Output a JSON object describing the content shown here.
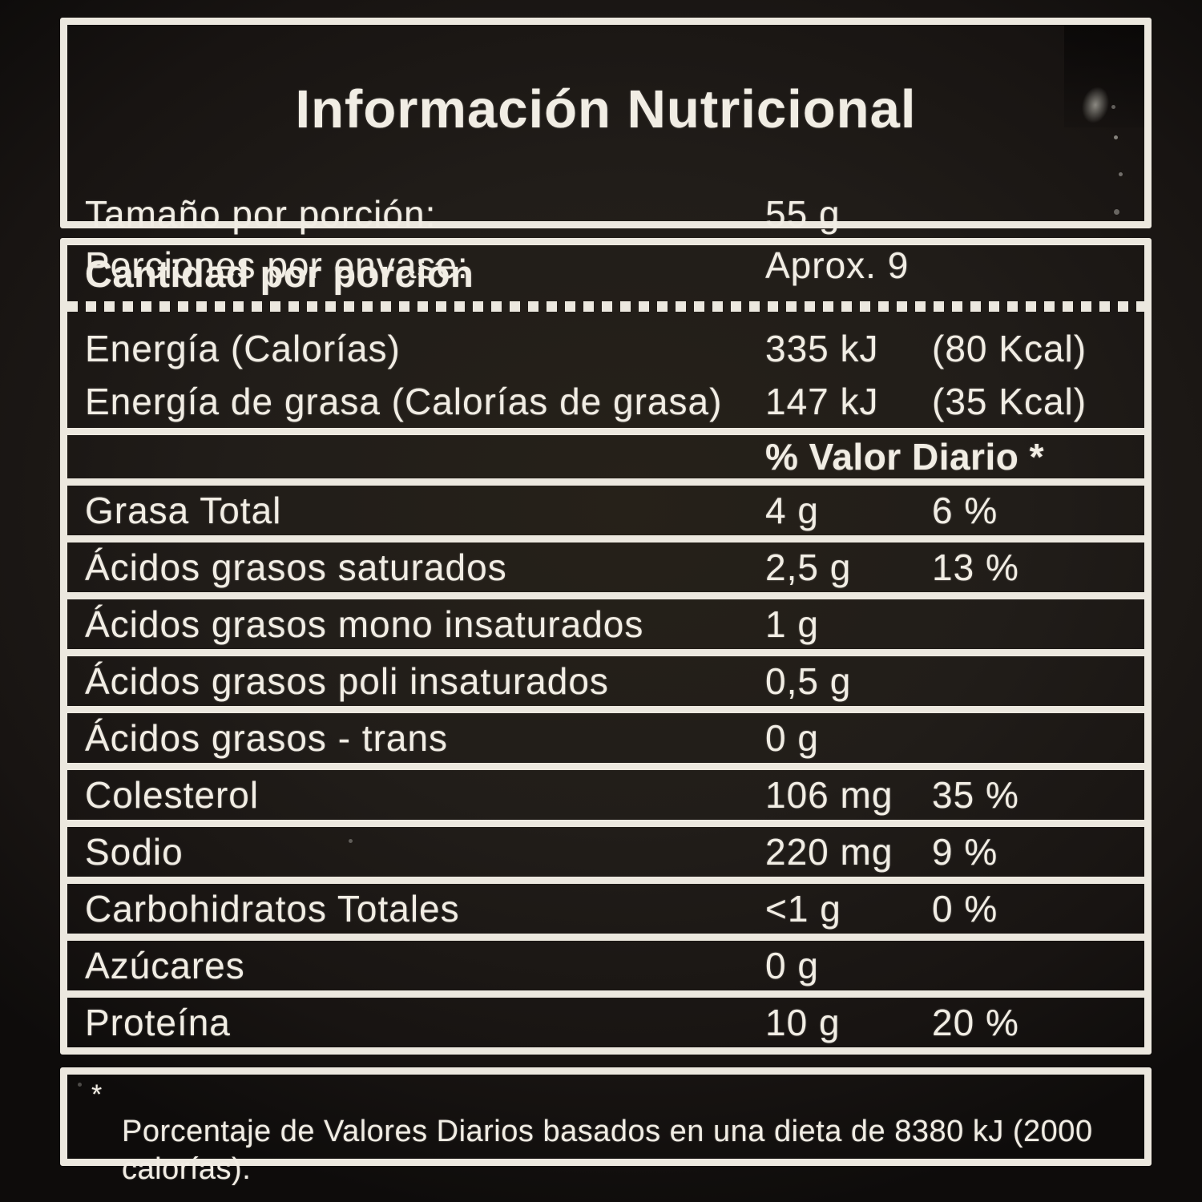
{
  "label": {
    "title": "Información Nutricional",
    "serving": [
      {
        "name": "Tamaño por porción:",
        "value": "55 g"
      },
      {
        "name": "Porciones por envase:",
        "value": "Aprox. 9"
      }
    ],
    "amount_header": "Cantidad por porción",
    "energy_rows": [
      {
        "name": "Energía (Calorías)",
        "kj": "335 kJ",
        "kcal": "(80 Kcal)"
      },
      {
        "name": "Energía de grasa (Calorías de grasa)",
        "kj": "147 kJ",
        "kcal": "(35 Kcal)"
      }
    ],
    "daily_value_header": "% Valor Diario *",
    "nutrients": [
      {
        "name": "Grasa Total",
        "amount": "4 g",
        "dv": "6 %"
      },
      {
        "name": "Ácidos grasos saturados",
        "amount": "2,5 g",
        "dv": "13 %"
      },
      {
        "name": "Ácidos grasos mono insaturados",
        "amount": "1 g",
        "dv": ""
      },
      {
        "name": "Ácidos grasos poli insaturados",
        "amount": "0,5 g",
        "dv": ""
      },
      {
        "name": "Ácidos grasos - trans",
        "amount": "0 g",
        "dv": ""
      },
      {
        "name": "Colesterol",
        "amount": "106 mg",
        "dv": "35 %"
      },
      {
        "name": "Sodio",
        "amount": "220 mg",
        "dv": "9 %"
      },
      {
        "name": "Carbohidratos Totales",
        "amount": "<1 g",
        "dv": "0 %"
      },
      {
        "name": "Azúcares",
        "amount": "0 g",
        "dv": ""
      },
      {
        "name": "Proteína",
        "amount": "10 g",
        "dv": "20 %"
      }
    ],
    "footnote_asterisk": "*",
    "footnote": "Porcentaje de Valores Diarios basados en una dieta de 8380 kJ (2000 calorías).",
    "colors": {
      "background": "#1e1a18",
      "border": "#ece8df",
      "ink": "#f1ede4"
    }
  }
}
